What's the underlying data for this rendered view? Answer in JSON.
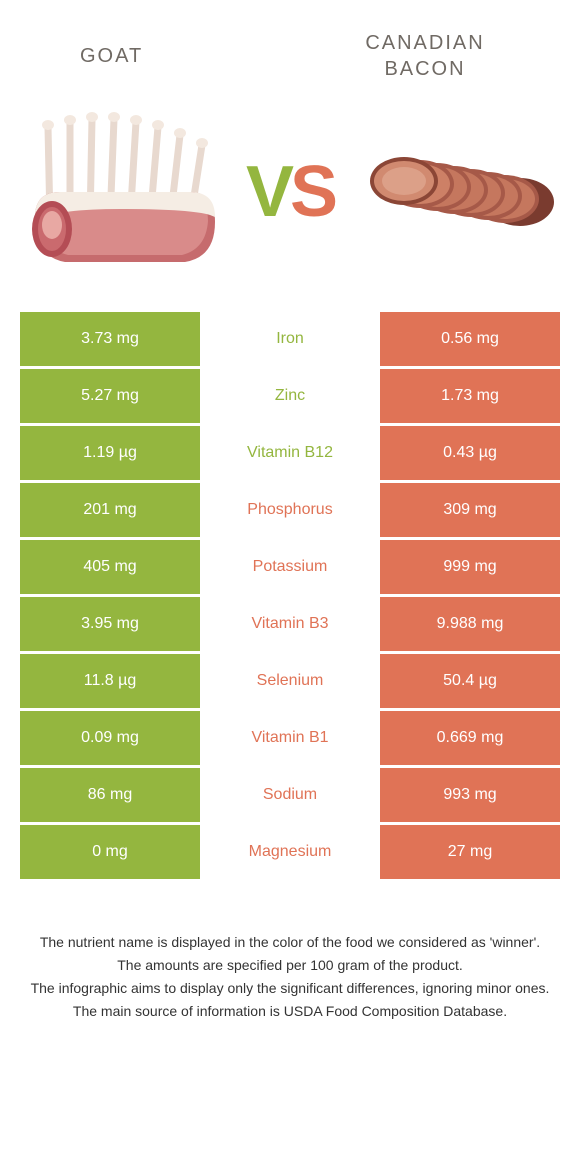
{
  "header": {
    "left_title": "GOAT",
    "right_title_line1": "CANADIAN",
    "right_title_line2": "BACON"
  },
  "vs": {
    "v": "V",
    "s": "S"
  },
  "colors": {
    "green": "#94b63f",
    "orange": "#e07356",
    "background": "#ffffff",
    "title_text": "#706a64",
    "footer_text": "#333333"
  },
  "rows": [
    {
      "left": "3.73 mg",
      "mid": "Iron",
      "winner": "green",
      "right": "0.56 mg"
    },
    {
      "left": "5.27 mg",
      "mid": "Zinc",
      "winner": "green",
      "right": "1.73 mg"
    },
    {
      "left": "1.19 µg",
      "mid": "Vitamin B12",
      "winner": "green",
      "right": "0.43 µg"
    },
    {
      "left": "201 mg",
      "mid": "Phosphorus",
      "winner": "orange",
      "right": "309 mg"
    },
    {
      "left": "405 mg",
      "mid": "Potassium",
      "winner": "orange",
      "right": "999 mg"
    },
    {
      "left": "3.95 mg",
      "mid": "Vitamin B3",
      "winner": "orange",
      "right": "9.988 mg"
    },
    {
      "left": "11.8 µg",
      "mid": "Selenium",
      "winner": "orange",
      "right": "50.4 µg"
    },
    {
      "left": "0.09 mg",
      "mid": "Vitamin B1",
      "winner": "orange",
      "right": "0.669 mg"
    },
    {
      "left": "86 mg",
      "mid": "Sodium",
      "winner": "orange",
      "right": "993 mg"
    },
    {
      "left": "0 mg",
      "mid": "Magnesium",
      "winner": "orange",
      "right": "27 mg"
    }
  ],
  "footer": {
    "line1": "The nutrient name is displayed in the color of the food we considered as 'winner'.",
    "line2": "The amounts are specified per 100 gram of the product.",
    "line3": "The infographic aims to display only the significant differences, ignoring minor ones.",
    "line4": "The main source of information is USDA Food Composition Database."
  }
}
